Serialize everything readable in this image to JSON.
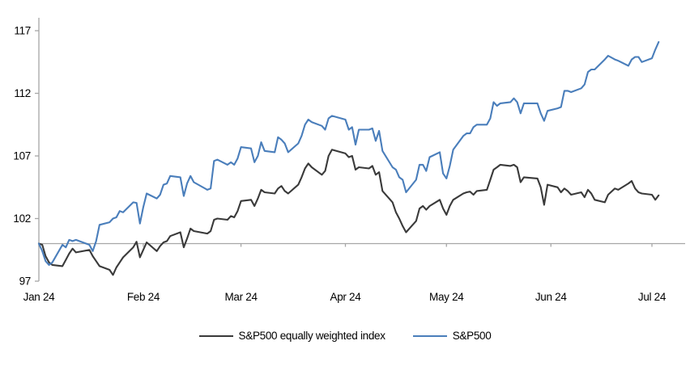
{
  "chart_data": {
    "type": "line",
    "title": "",
    "xlabel": "",
    "ylabel": "",
    "grid": false,
    "axis_color": "#a6a6a6",
    "text_color": "#000000",
    "x_axis": {
      "unit": "date",
      "range_days": [
        0,
        186
      ],
      "tick_days": [
        0,
        31,
        60,
        91,
        121,
        152,
        182
      ],
      "tick_labels": [
        "Jan 24",
        "Feb 24",
        "Mar 24",
        "Apr 24",
        "May 24",
        "Jun 24",
        "Jul 24"
      ]
    },
    "y_axis": {
      "range": [
        97,
        117
      ],
      "ticks": [
        97,
        102,
        107,
        112,
        117
      ],
      "tick_labels": [
        "97",
        "102",
        "107",
        "112",
        "117"
      ],
      "baseline_value": 100
    },
    "legend": {
      "position": "bottom",
      "entries": [
        {
          "label": "S&P500 equally weighted index",
          "color": "#3a3a3a"
        },
        {
          "label": "S&P500",
          "color": "#4a7ebb"
        }
      ]
    },
    "series": [
      {
        "name": "S&P500 equally weighted index",
        "color": "#3a3a3a",
        "points": [
          [
            0,
            100
          ],
          [
            1,
            99.9
          ],
          [
            2,
            99.0
          ],
          [
            3,
            98.5
          ],
          [
            4,
            98.3
          ],
          [
            7,
            98.2
          ],
          [
            8,
            98.7
          ],
          [
            9,
            99.2
          ],
          [
            10,
            99.6
          ],
          [
            11,
            99.3
          ],
          [
            15,
            99.5
          ],
          [
            16,
            99.0
          ],
          [
            17,
            98.6
          ],
          [
            18,
            98.2
          ],
          [
            21,
            97.9
          ],
          [
            22,
            97.5
          ],
          [
            23,
            98.1
          ],
          [
            24,
            98.5
          ],
          [
            25,
            98.9
          ],
          [
            28,
            99.7
          ],
          [
            29,
            100.15
          ],
          [
            30,
            98.9
          ],
          [
            31,
            99.5
          ],
          [
            32,
            100.1
          ],
          [
            35,
            99.4
          ],
          [
            36,
            99.8
          ],
          [
            37,
            100.1
          ],
          [
            38,
            100.2
          ],
          [
            39,
            100.6
          ],
          [
            42,
            100.9
          ],
          [
            43,
            99.7
          ],
          [
            44,
            100.4
          ],
          [
            45,
            101.2
          ],
          [
            46,
            101.0
          ],
          [
            50,
            100.8
          ],
          [
            51,
            101.0
          ],
          [
            52,
            101.9
          ],
          [
            53,
            102.0
          ],
          [
            56,
            101.9
          ],
          [
            57,
            102.2
          ],
          [
            58,
            102.1
          ],
          [
            59,
            102.6
          ],
          [
            60,
            103.4
          ],
          [
            63,
            103.5
          ],
          [
            64,
            103.0
          ],
          [
            65,
            103.6
          ],
          [
            66,
            104.3
          ],
          [
            67,
            104.1
          ],
          [
            70,
            104.0
          ],
          [
            71,
            104.4
          ],
          [
            72,
            104.6
          ],
          [
            73,
            104.2
          ],
          [
            74,
            104.0
          ],
          [
            77,
            104.7
          ],
          [
            78,
            105.3
          ],
          [
            79,
            106.0
          ],
          [
            80,
            106.4
          ],
          [
            81,
            106.1
          ],
          [
            84,
            105.5
          ],
          [
            85,
            105.8
          ],
          [
            86,
            107.0
          ],
          [
            87,
            107.5
          ],
          [
            91,
            107.2
          ],
          [
            92,
            106.9
          ],
          [
            93,
            107.0
          ],
          [
            94,
            105.9
          ],
          [
            95,
            106.1
          ],
          [
            98,
            106.0
          ],
          [
            99,
            106.2
          ],
          [
            100,
            105.5
          ],
          [
            101,
            105.7
          ],
          [
            102,
            104.2
          ],
          [
            105,
            103.3
          ],
          [
            106,
            102.5
          ],
          [
            107,
            102.0
          ],
          [
            108,
            101.4
          ],
          [
            109,
            100.9
          ],
          [
            112,
            101.8
          ],
          [
            113,
            102.8
          ],
          [
            114,
            103.0
          ],
          [
            115,
            102.7
          ],
          [
            116,
            103.0
          ],
          [
            119,
            103.5
          ],
          [
            120,
            102.8
          ],
          [
            121,
            102.3
          ],
          [
            122,
            103.0
          ],
          [
            123,
            103.5
          ],
          [
            126,
            104.0
          ],
          [
            127,
            104.1
          ],
          [
            128,
            104.15
          ],
          [
            129,
            103.9
          ],
          [
            130,
            104.2
          ],
          [
            133,
            104.3
          ],
          [
            134,
            105.1
          ],
          [
            135,
            105.9
          ],
          [
            136,
            106.1
          ],
          [
            137,
            106.3
          ],
          [
            140,
            106.2
          ],
          [
            141,
            106.3
          ],
          [
            142,
            106.1
          ],
          [
            143,
            104.9
          ],
          [
            144,
            105.3
          ],
          [
            148,
            105.2
          ],
          [
            149,
            104.5
          ],
          [
            150,
            103.1
          ],
          [
            151,
            104.7
          ],
          [
            154,
            104.5
          ],
          [
            155,
            104.1
          ],
          [
            156,
            104.4
          ],
          [
            157,
            104.2
          ],
          [
            158,
            103.9
          ],
          [
            161,
            104.1
          ],
          [
            162,
            103.7
          ],
          [
            163,
            104.3
          ],
          [
            164,
            104.0
          ],
          [
            165,
            103.5
          ],
          [
            168,
            103.3
          ],
          [
            169,
            103.9
          ],
          [
            171,
            104.4
          ],
          [
            172,
            104.3
          ],
          [
            175,
            104.8
          ],
          [
            176,
            105.0
          ],
          [
            177,
            104.4
          ],
          [
            178,
            104.1
          ],
          [
            179,
            104.0
          ],
          [
            182,
            103.9
          ],
          [
            183,
            103.5
          ],
          [
            184,
            103.85
          ]
        ]
      },
      {
        "name": "S&P500",
        "color": "#4a7ebb",
        "points": [
          [
            0,
            100
          ],
          [
            1,
            99.4
          ],
          [
            2,
            98.6
          ],
          [
            3,
            98.3
          ],
          [
            4,
            98.5
          ],
          [
            7,
            99.9
          ],
          [
            8,
            99.7
          ],
          [
            9,
            100.3
          ],
          [
            10,
            100.2
          ],
          [
            11,
            100.3
          ],
          [
            15,
            99.9
          ],
          [
            16,
            99.4
          ],
          [
            17,
            100.2
          ],
          [
            18,
            101.5
          ],
          [
            21,
            101.7
          ],
          [
            22,
            102.0
          ],
          [
            23,
            102.1
          ],
          [
            24,
            102.6
          ],
          [
            25,
            102.5
          ],
          [
            28,
            103.3
          ],
          [
            29,
            103.25
          ],
          [
            30,
            101.6
          ],
          [
            31,
            102.9
          ],
          [
            32,
            104.0
          ],
          [
            35,
            103.6
          ],
          [
            36,
            103.9
          ],
          [
            37,
            104.7
          ],
          [
            38,
            104.8
          ],
          [
            39,
            105.4
          ],
          [
            42,
            105.3
          ],
          [
            43,
            103.8
          ],
          [
            44,
            104.8
          ],
          [
            45,
            105.4
          ],
          [
            46,
            104.9
          ],
          [
            50,
            104.3
          ],
          [
            51,
            104.4
          ],
          [
            52,
            106.6
          ],
          [
            53,
            106.7
          ],
          [
            56,
            106.3
          ],
          [
            57,
            106.5
          ],
          [
            58,
            106.3
          ],
          [
            59,
            106.8
          ],
          [
            60,
            107.7
          ],
          [
            63,
            107.6
          ],
          [
            64,
            106.5
          ],
          [
            65,
            107.0
          ],
          [
            66,
            108.1
          ],
          [
            67,
            107.4
          ],
          [
            70,
            107.3
          ],
          [
            71,
            108.5
          ],
          [
            72,
            108.3
          ],
          [
            73,
            108.0
          ],
          [
            74,
            107.3
          ],
          [
            77,
            108.0
          ],
          [
            78,
            108.6
          ],
          [
            79,
            109.5
          ],
          [
            80,
            109.9
          ],
          [
            81,
            109.7
          ],
          [
            84,
            109.4
          ],
          [
            85,
            109.1
          ],
          [
            86,
            110.0
          ],
          [
            87,
            110.2
          ],
          [
            91,
            109.9
          ],
          [
            92,
            109.1
          ],
          [
            93,
            109.3
          ],
          [
            94,
            107.9
          ],
          [
            95,
            109.1
          ],
          [
            98,
            109.1
          ],
          [
            99,
            109.2
          ],
          [
            100,
            108.2
          ],
          [
            101,
            109.0
          ],
          [
            102,
            107.4
          ],
          [
            105,
            106.1
          ],
          [
            106,
            105.9
          ],
          [
            107,
            105.3
          ],
          [
            108,
            105.1
          ],
          [
            109,
            104.1
          ],
          [
            112,
            105.1
          ],
          [
            113,
            106.3
          ],
          [
            114,
            106.3
          ],
          [
            115,
            105.8
          ],
          [
            116,
            106.9
          ],
          [
            119,
            107.3
          ],
          [
            120,
            105.6
          ],
          [
            121,
            105.2
          ],
          [
            122,
            106.2
          ],
          [
            123,
            107.5
          ],
          [
            126,
            108.6
          ],
          [
            127,
            108.8
          ],
          [
            128,
            108.8
          ],
          [
            129,
            109.3
          ],
          [
            130,
            109.5
          ],
          [
            133,
            109.5
          ],
          [
            134,
            110.0
          ],
          [
            135,
            111.3
          ],
          [
            136,
            111.0
          ],
          [
            137,
            111.2
          ],
          [
            140,
            111.3
          ],
          [
            141,
            111.6
          ],
          [
            142,
            111.3
          ],
          [
            143,
            110.4
          ],
          [
            144,
            111.2
          ],
          [
            148,
            111.2
          ],
          [
            149,
            110.4
          ],
          [
            150,
            109.8
          ],
          [
            151,
            110.6
          ],
          [
            154,
            110.8
          ],
          [
            155,
            110.9
          ],
          [
            156,
            112.2
          ],
          [
            157,
            112.2
          ],
          [
            158,
            112.1
          ],
          [
            161,
            112.4
          ],
          [
            162,
            112.7
          ],
          [
            163,
            113.7
          ],
          [
            164,
            113.9
          ],
          [
            165,
            113.9
          ],
          [
            168,
            114.7
          ],
          [
            169,
            115.0
          ],
          [
            171,
            114.7
          ],
          [
            172,
            114.6
          ],
          [
            175,
            114.2
          ],
          [
            176,
            114.7
          ],
          [
            177,
            114.9
          ],
          [
            178,
            114.9
          ],
          [
            179,
            114.5
          ],
          [
            182,
            114.8
          ],
          [
            183,
            115.5
          ],
          [
            184,
            116.1
          ]
        ]
      }
    ]
  }
}
